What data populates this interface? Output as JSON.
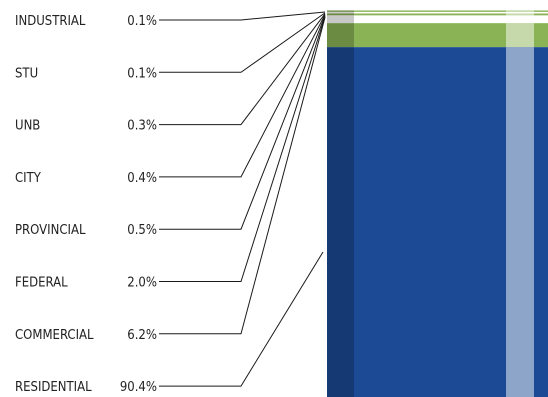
{
  "chart_data": {
    "type": "bar",
    "orientation": "stacked-column",
    "categories": [
      "INDUSTRIAL",
      "STU",
      "UNB",
      "CITY",
      "PROVINCIAL",
      "FEDERAL",
      "COMMERCIAL",
      "RESIDENTIAL"
    ],
    "values": [
      0.1,
      0.1,
      0.3,
      0.4,
      0.5,
      2.0,
      6.2,
      90.4
    ],
    "value_labels": [
      "0.1%",
      "0.1%",
      "0.3%",
      "0.4%",
      "0.5%",
      "2.0%",
      "6.2%",
      "90.4%"
    ],
    "unit": "%",
    "legend": "left",
    "grid": false,
    "colors": {
      "INDUSTRIAL": "#8ab356",
      "STU": "#ffffff",
      "UNB": "#8ab356",
      "CITY": "#ffffff",
      "PROVINCIAL": "#8ab356",
      "FEDERAL": "#ffffff",
      "COMMERCIAL": "#8ab356",
      "RESIDENTIAL": "#1c4a94"
    },
    "left_shade": "#000000",
    "right_highlight": "#ffffff"
  }
}
